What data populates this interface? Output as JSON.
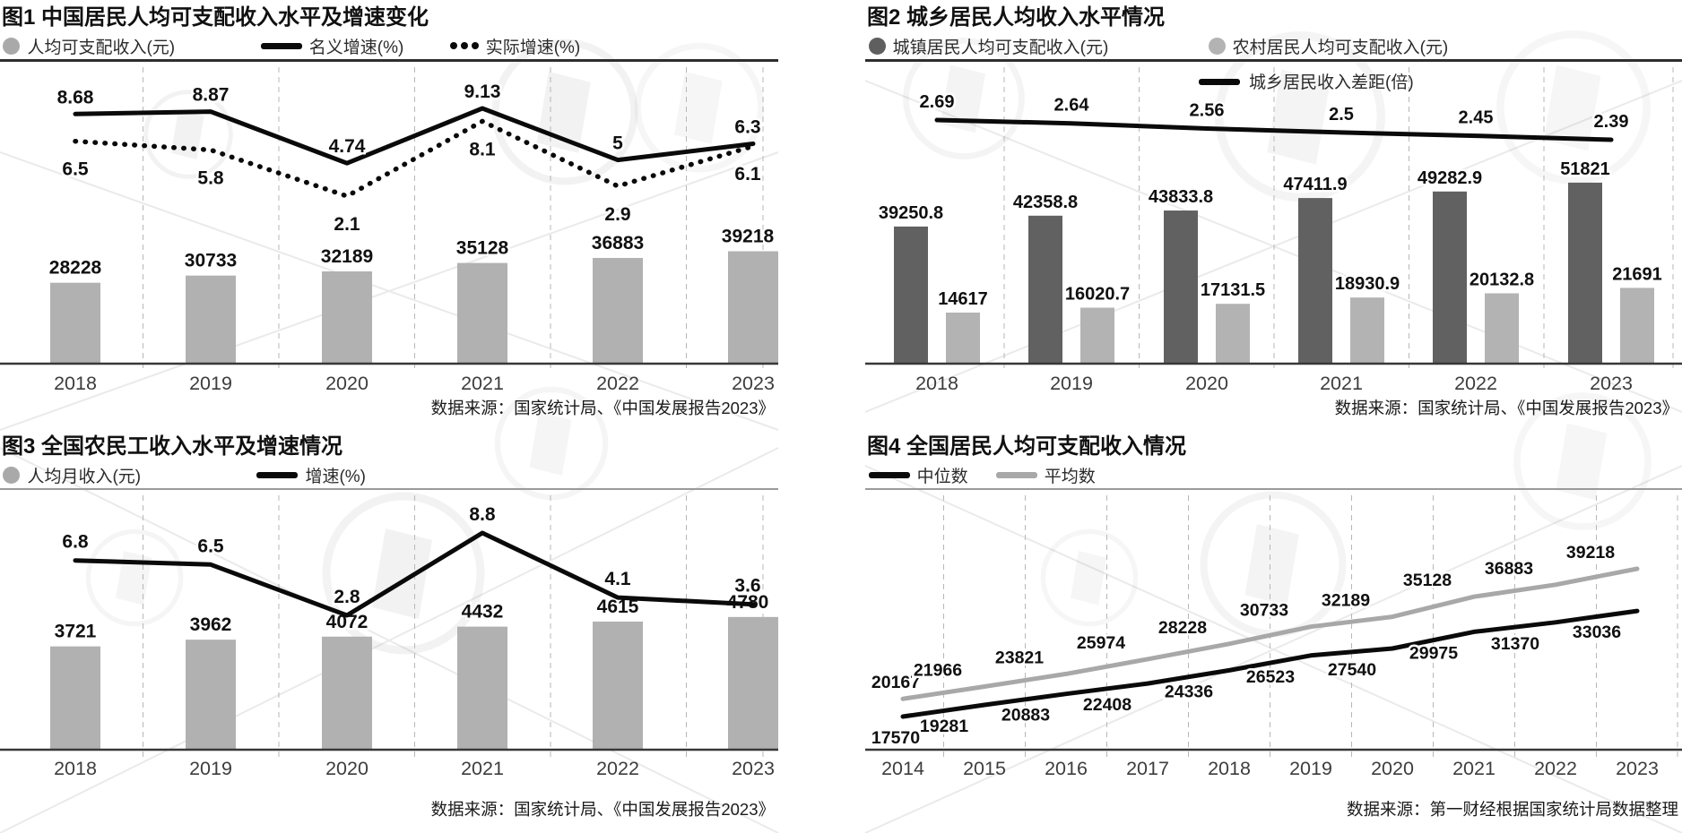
{
  "page": {
    "background": "#ffffff"
  },
  "charts": [
    {
      "title": "图1 中国居民人均可支配收入水平及增速变化",
      "source": "数据来源：国家统计局、《中国发展报告2023》",
      "legend": [
        {
          "label": "人均可支配收入(元)",
          "swatch": "dot",
          "color": "#a9a9a9",
          "x": 0.004
        },
        {
          "label": "名义增速(%)",
          "swatch": "line",
          "color": "#0a0a0a",
          "x": 0.335
        },
        {
          "label": "实际增速(%)",
          "swatch": "dots",
          "color": "#0a0a0a",
          "x": 0.578
        }
      ],
      "chart_data": {
        "type": "bar+line",
        "categories": [
          "2018",
          "2019",
          "2020",
          "2021",
          "2022",
          "2023"
        ],
        "series": [
          {
            "name": "人均可支配收入(元)",
            "type": "bar",
            "color": "#b1b1b1",
            "values": [
              28228,
              30733,
              32189,
              35128,
              36883,
              39218
            ]
          },
          {
            "name": "名义增速(%)",
            "type": "line",
            "style": "solid",
            "color": "#0a0a0a",
            "values": [
              8.68,
              8.87,
              4.74,
              9.13,
              5,
              6.3
            ]
          },
          {
            "name": "实际增速(%)",
            "type": "line",
            "style": "dotted",
            "color": "#0a0a0a",
            "values": [
              6.5,
              5.8,
              2.1,
              8.1,
              2.9,
              6.1
            ]
          }
        ],
        "legend_position": "top",
        "grid": "vertical-dashed-separators"
      }
    },
    {
      "title": "图2 城乡居民人均收入水平情况",
      "source": "数据来源：国家统计局、《中国发展报告2023》",
      "legend": [
        {
          "label": "城镇居民人均可支配收入(元)",
          "swatch": "dot",
          "color": "#5f5f5f",
          "x": 0.004
        },
        {
          "label": "农村居民人均可支配收入(元)",
          "swatch": "dot",
          "color": "#b3b3b3",
          "x": 0.42
        },
        {
          "label": "城乡居民收入差距(倍)",
          "swatch": "line",
          "color": "#0a0a0a",
          "x": 0.408,
          "in_plot": true
        }
      ],
      "chart_data": {
        "type": "bar+line",
        "categories": [
          "2018",
          "2019",
          "2020",
          "2021",
          "2022",
          "2023"
        ],
        "series": [
          {
            "name": "城镇居民人均可支配收入(元)",
            "type": "bar",
            "color": "#616161",
            "values": [
              39250.8,
              42358.8,
              43833.8,
              47411.9,
              49282.9,
              51821
            ]
          },
          {
            "name": "农村居民人均可支配收入(元)",
            "type": "bar",
            "color": "#b3b3b3",
            "values": [
              14617,
              16020.7,
              17131.5,
              18930.9,
              20132.8,
              21691
            ]
          },
          {
            "name": "城乡居民收入差距(倍)",
            "type": "line",
            "style": "solid",
            "color": "#0a0a0a",
            "values": [
              2.69,
              2.64,
              2.56,
              2.5,
              2.45,
              2.39
            ]
          }
        ],
        "legend_position": "top",
        "grid": "vertical-dashed-separators"
      }
    },
    {
      "title": "图3 全国农民工收入水平及增速情况",
      "source": "数据来源：国家统计局、《中国发展报告2023》",
      "legend": [
        {
          "label": "人均月收入(元)",
          "swatch": "dot",
          "color": "#a9a9a9",
          "x": 0.004
        },
        {
          "label": "增速(%)",
          "swatch": "line",
          "color": "#0a0a0a",
          "x": 0.33
        }
      ],
      "chart_data": {
        "type": "bar+line",
        "categories": [
          "2018",
          "2019",
          "2020",
          "2021",
          "2022",
          "2023"
        ],
        "series": [
          {
            "name": "人均月收入(元)",
            "type": "bar",
            "color": "#b1b1b1",
            "values": [
              3721,
              3962,
              4072,
              4432,
              4615,
              4780
            ]
          },
          {
            "name": "增速(%)",
            "type": "line",
            "style": "solid",
            "color": "#0a0a0a",
            "values": [
              6.8,
              6.5,
              2.8,
              8.8,
              4.1,
              3.6
            ]
          }
        ],
        "legend_position": "top",
        "grid": "vertical-dashed-separators"
      }
    },
    {
      "title": "图4 全国居民人均可支配收入情况",
      "source": "数据来源：第一财经根据国家统计局数据整理",
      "legend": [
        {
          "label": "中位数",
          "swatch": "line",
          "color": "#0a0a0a",
          "x": 0.004
        },
        {
          "label": "平均数",
          "swatch": "line",
          "color": "#a8a8a8",
          "x": 0.16
        }
      ],
      "chart_data": {
        "type": "line",
        "categories": [
          "2014",
          "2015",
          "2016",
          "2017",
          "2018",
          "2019",
          "2020",
          "2021",
          "2022",
          "2023"
        ],
        "series": [
          {
            "name": "中位数",
            "type": "line",
            "style": "solid",
            "color": "#0a0a0a",
            "values": [
              17570,
              19281,
              20883,
              22408,
              24336,
              26523,
              27540,
              29975,
              31370,
              33036
            ]
          },
          {
            "name": "平均数",
            "type": "line",
            "style": "solid",
            "color": "#a8a8a8",
            "values": [
              20167,
              21966,
              23821,
              25974,
              28228,
              30733,
              32189,
              35128,
              36883,
              39218
            ]
          }
        ],
        "legend_position": "top",
        "grid": "vertical-dashed-separators"
      }
    }
  ]
}
